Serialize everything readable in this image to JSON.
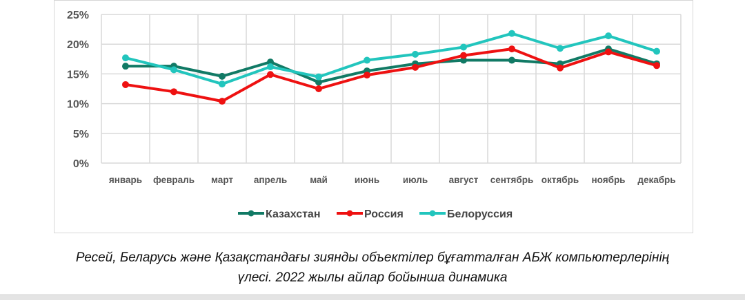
{
  "chart_data": {
    "type": "line",
    "title": "",
    "xlabel": "",
    "ylabel": "",
    "ylim": [
      0,
      25
    ],
    "yticks": [
      "0%",
      "5%",
      "10%",
      "15%",
      "20%",
      "25%"
    ],
    "grid": true,
    "legend_position": "bottom",
    "categories": [
      "январь",
      "февраль",
      "март",
      "апрель",
      "май",
      "июнь",
      "июль",
      "август",
      "сентябрь",
      "октябрь",
      "ноябрь",
      "декабрь"
    ],
    "series": [
      {
        "name": "Казахстан",
        "color": "#117a65",
        "values": [
          16.3,
          16.3,
          14.6,
          17.0,
          13.6,
          15.5,
          16.7,
          17.3,
          17.3,
          16.7,
          19.2,
          16.7
        ]
      },
      {
        "name": "Россия",
        "color": "#ee1111",
        "values": [
          13.2,
          12.0,
          10.4,
          14.9,
          12.5,
          14.8,
          16.1,
          18.1,
          19.2,
          16.0,
          18.7,
          16.4
        ]
      },
      {
        "name": "Белоруссия",
        "color": "#22c5bd",
        "values": [
          17.7,
          15.7,
          13.3,
          16.2,
          14.5,
          17.3,
          18.3,
          19.5,
          21.8,
          19.3,
          21.4,
          18.8
        ]
      }
    ]
  },
  "caption": {
    "line1": "Ресей, Беларусь және Қазақстандағы зиянды объектілер бұғатталған АБЖ компьютерлерінің",
    "line2": "үлесі. 2022 жылы айлар бойынша динамика"
  }
}
